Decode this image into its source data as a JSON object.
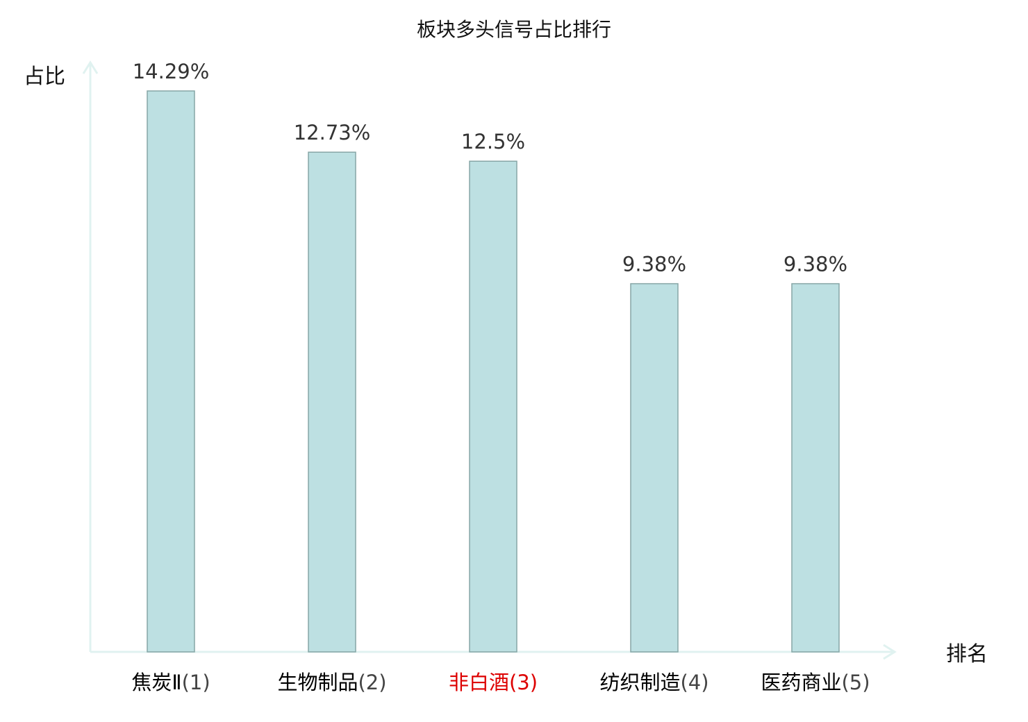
{
  "chart_data": {
    "type": "bar",
    "title": "板块多头信号占比排行",
    "xlabel": "排名",
    "ylabel": "占比",
    "ylim": [
      0,
      14.29
    ],
    "grid": false,
    "categories": [
      "焦炭Ⅱ(1)",
      "生物制品(2)",
      "非白酒(3)",
      "纺织制造(4)",
      "医药商业(5)"
    ],
    "values": [
      14.29,
      12.73,
      12.5,
      9.38,
      9.38
    ],
    "value_labels": [
      "14.29%",
      "12.73%",
      "12.5%",
      "9.38%",
      "9.38%"
    ],
    "highlight_index": 2,
    "colors": {
      "bar_fill": "#bde0e2",
      "bar_stroke": "#86a6a6",
      "axis": "#e0f2f0",
      "highlight": "#dd0000",
      "category_text": "#000000",
      "category_paren": "#444444"
    }
  }
}
